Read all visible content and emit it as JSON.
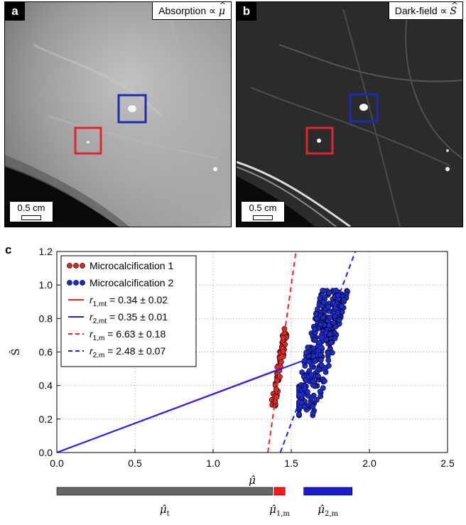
{
  "panel_a": {
    "letter": "a",
    "title_prefix": "Absorption ∝ ",
    "title_symbol": "μ",
    "scale_label": "0.5 cm",
    "box_colors": {
      "red": "#e0262e",
      "blue": "#1c2bb0"
    }
  },
  "panel_b": {
    "letter": "b",
    "title_prefix": "Dark-field ∝ ",
    "title_symbol": "S",
    "scale_label": "0.5 cm",
    "box_colors": {
      "red": "#e0262e",
      "blue": "#1c2bb0"
    }
  },
  "panel_c": {
    "letter": "c"
  },
  "chart_data": {
    "type": "scatter",
    "xlabel": "μ̂",
    "ylabel": "Ŝ",
    "xlim": [
      0,
      2.5
    ],
    "ylim": [
      0,
      1.2
    ],
    "xticks": [
      0.0,
      0.5,
      1.0,
      1.5,
      2.0,
      2.5
    ],
    "yticks": [
      0.0,
      0.2,
      0.4,
      0.6,
      0.8,
      1.0,
      1.2
    ],
    "grid": true,
    "legend_position": "top-left",
    "series": [
      {
        "name": "Microcalcification 1",
        "kind": "scatter",
        "color": "#d42a2a",
        "x_range": [
          1.37,
          1.48
        ],
        "y_range": [
          0.28,
          0.74
        ]
      },
      {
        "name": "Microcalcification 2",
        "kind": "scatter",
        "color": "#1c2bc4",
        "x_range": [
          1.55,
          1.86
        ],
        "y_range": [
          0.22,
          0.97
        ]
      },
      {
        "name": "r1,mt = 0.34 ± 0.02",
        "label_sym": "r",
        "label_sub": "1,mt",
        "label_val": " = 0.34 ± 0.02",
        "kind": "line",
        "color": "#ff2020",
        "dash": false,
        "x": [
          0.0,
          1.4
        ],
        "y": [
          0.0,
          0.49
        ]
      },
      {
        "name": "r2,mt = 0.35 ± 0.01",
        "label_sym": "r",
        "label_sub": "2,mt",
        "label_val": " = 0.35 ± 0.01",
        "kind": "line",
        "color": "#2020ff",
        "dash": false,
        "x": [
          0.0,
          1.58
        ],
        "y": [
          0.0,
          0.55
        ]
      },
      {
        "name": "r1,m = 6.63 ± 0.18",
        "label_sym": "r",
        "label_sub": "1,m",
        "label_val": " = 6.63 ± 0.18",
        "kind": "line",
        "color": "#ff2020",
        "dash": true,
        "x": [
          1.35,
          1.53
        ],
        "y": [
          0.0,
          1.2
        ]
      },
      {
        "name": "r2,m = 2.48 ± 0.07",
        "label_sym": "r",
        "label_sub": "2,m",
        "label_val": " = 2.48 ± 0.07",
        "kind": "line",
        "color": "#2020ff",
        "dash": true,
        "x": [
          1.43,
          1.91
        ],
        "y": [
          0.0,
          1.2
        ]
      }
    ],
    "ranges": [
      {
        "label": "μ̂t",
        "sym": "μ",
        "sub": "t",
        "x": [
          0.0,
          1.38
        ],
        "color": "#666666"
      },
      {
        "label": "μ̂1,m",
        "sym": "μ",
        "sub": "1,m",
        "x": [
          1.39,
          1.46
        ],
        "color": "#ff1a1a"
      },
      {
        "label": "μ̂2,m",
        "sym": "μ",
        "sub": "2,m",
        "x": [
          1.58,
          1.89
        ],
        "color": "#1a1ad0"
      }
    ]
  }
}
